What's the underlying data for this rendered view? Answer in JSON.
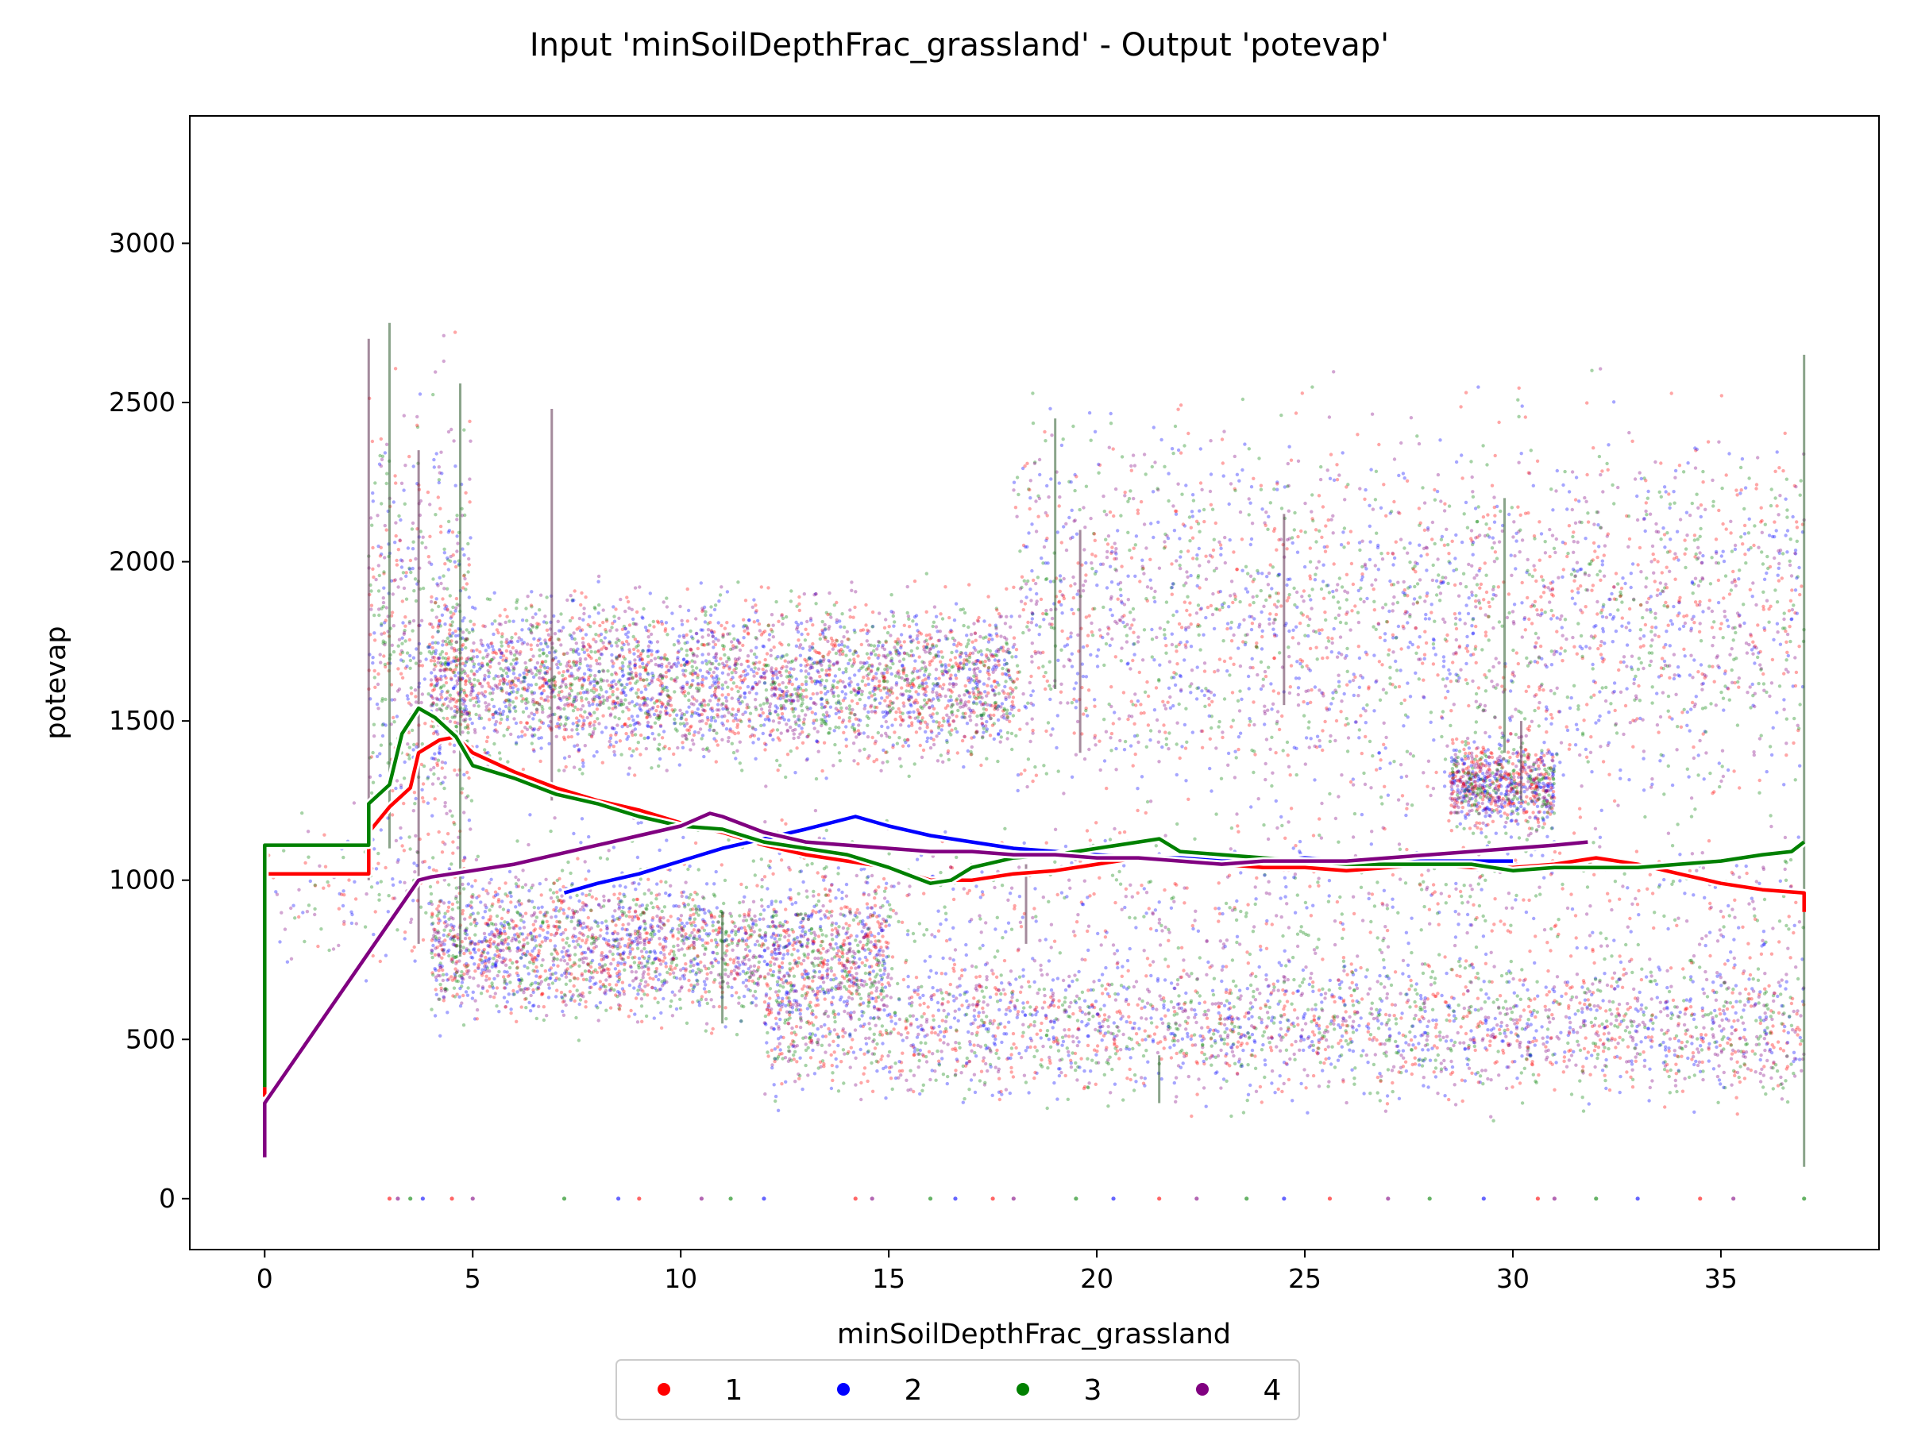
{
  "chart_data": {
    "type": "scatter",
    "title": "Input 'minSoilDepthFrac_grassland' - Output 'potevap'",
    "xlabel": "minSoilDepthFrac_grassland",
    "ylabel": "potevap",
    "xlim": [
      -1.8,
      38.8
    ],
    "ylim": [
      -160,
      3400
    ],
    "xticks": [
      0,
      5,
      10,
      15,
      20,
      25,
      30,
      35
    ],
    "yticks": [
      0,
      500,
      1000,
      1500,
      2000,
      2500,
      3000
    ],
    "grid": false,
    "legend_position": "bottom-center",
    "series": [
      {
        "name": "1",
        "color": "#ff0000",
        "line": [
          [
            0,
            320
          ],
          [
            0,
            1020
          ],
          [
            2.5,
            1020
          ],
          [
            2.5,
            1150
          ],
          [
            3.0,
            1230
          ],
          [
            3.5,
            1290
          ],
          [
            3.7,
            1400
          ],
          [
            4.2,
            1440
          ],
          [
            4.6,
            1450
          ],
          [
            5.0,
            1400
          ],
          [
            6.0,
            1340
          ],
          [
            7.0,
            1290
          ],
          [
            8.0,
            1250
          ],
          [
            9.0,
            1220
          ],
          [
            10.0,
            1180
          ],
          [
            11.0,
            1150
          ],
          [
            12.0,
            1110
          ],
          [
            13.0,
            1080
          ],
          [
            14.0,
            1060
          ],
          [
            15.0,
            1040
          ],
          [
            16.0,
            1000
          ],
          [
            17.0,
            1000
          ],
          [
            18.0,
            1020
          ],
          [
            19.0,
            1030
          ],
          [
            20.0,
            1050
          ],
          [
            21.0,
            1070
          ],
          [
            22.0,
            1070
          ],
          [
            23.0,
            1050
          ],
          [
            24.0,
            1040
          ],
          [
            25.0,
            1040
          ],
          [
            26.0,
            1030
          ],
          [
            27.0,
            1040
          ],
          [
            28.0,
            1050
          ],
          [
            29.0,
            1040
          ],
          [
            30.0,
            1040
          ],
          [
            31.0,
            1050
          ],
          [
            32.0,
            1070
          ],
          [
            33.0,
            1050
          ],
          [
            34.0,
            1020
          ],
          [
            35.0,
            990
          ],
          [
            36.0,
            970
          ],
          [
            37.0,
            960
          ],
          [
            37.0,
            900
          ]
        ]
      },
      {
        "name": "2",
        "color": "#0000ff",
        "line": [
          [
            7.2,
            960
          ],
          [
            8.0,
            990
          ],
          [
            9.0,
            1020
          ],
          [
            10.0,
            1060
          ],
          [
            11.0,
            1100
          ],
          [
            12.0,
            1130
          ],
          [
            13.0,
            1160
          ],
          [
            14.2,
            1200
          ],
          [
            15.0,
            1170
          ],
          [
            16.0,
            1140
          ],
          [
            17.0,
            1120
          ],
          [
            18.0,
            1100
          ],
          [
            19.0,
            1090
          ],
          [
            20.0,
            1080
          ],
          [
            21.0,
            1070
          ],
          [
            22.0,
            1070
          ],
          [
            23.0,
            1060
          ],
          [
            24.0,
            1060
          ],
          [
            25.0,
            1070
          ],
          [
            26.0,
            1060
          ],
          [
            27.0,
            1060
          ],
          [
            28.0,
            1060
          ],
          [
            29.0,
            1060
          ],
          [
            30.0,
            1060
          ]
        ]
      },
      {
        "name": "3",
        "color": "#008000",
        "line": [
          [
            0,
            350
          ],
          [
            0,
            1110
          ],
          [
            2.5,
            1110
          ],
          [
            2.5,
            1240
          ],
          [
            3.0,
            1300
          ],
          [
            3.3,
            1460
          ],
          [
            3.7,
            1540
          ],
          [
            4.1,
            1510
          ],
          [
            4.6,
            1450
          ],
          [
            5.0,
            1360
          ],
          [
            6.0,
            1320
          ],
          [
            7.0,
            1270
          ],
          [
            8.0,
            1240
          ],
          [
            9.0,
            1200
          ],
          [
            10.0,
            1170
          ],
          [
            11.0,
            1160
          ],
          [
            12.0,
            1120
          ],
          [
            13.0,
            1100
          ],
          [
            14.0,
            1080
          ],
          [
            15.0,
            1040
          ],
          [
            16.0,
            990
          ],
          [
            16.5,
            1000
          ],
          [
            17.0,
            1040
          ],
          [
            18.0,
            1070
          ],
          [
            19.0,
            1080
          ],
          [
            20.0,
            1100
          ],
          [
            21.0,
            1120
          ],
          [
            21.5,
            1130
          ],
          [
            22.0,
            1090
          ],
          [
            23.0,
            1080
          ],
          [
            24.0,
            1070
          ],
          [
            25.0,
            1060
          ],
          [
            26.0,
            1050
          ],
          [
            27.0,
            1050
          ],
          [
            28.0,
            1050
          ],
          [
            29.0,
            1050
          ],
          [
            30.0,
            1030
          ],
          [
            31.0,
            1040
          ],
          [
            32.0,
            1040
          ],
          [
            33.0,
            1040
          ],
          [
            34.0,
            1050
          ],
          [
            35.0,
            1060
          ],
          [
            36.0,
            1080
          ],
          [
            36.7,
            1090
          ],
          [
            37.0,
            1120
          ]
        ]
      },
      {
        "name": "4",
        "color": "#800080",
        "line": [
          [
            0,
            130
          ],
          [
            0,
            300
          ],
          [
            3.7,
            1000
          ],
          [
            4.0,
            1010
          ],
          [
            5.0,
            1030
          ],
          [
            6.0,
            1050
          ],
          [
            7.0,
            1080
          ],
          [
            8.0,
            1110
          ],
          [
            9.0,
            1140
          ],
          [
            10.0,
            1170
          ],
          [
            10.7,
            1210
          ],
          [
            11.0,
            1200
          ],
          [
            12.0,
            1150
          ],
          [
            13.0,
            1120
          ],
          [
            14.0,
            1110
          ],
          [
            15.0,
            1100
          ],
          [
            16.0,
            1090
          ],
          [
            17.0,
            1090
          ],
          [
            18.0,
            1080
          ],
          [
            19.0,
            1080
          ],
          [
            20.0,
            1070
          ],
          [
            21.0,
            1070
          ],
          [
            22.0,
            1060
          ],
          [
            23.0,
            1050
          ],
          [
            24.0,
            1060
          ],
          [
            25.0,
            1060
          ],
          [
            26.0,
            1060
          ],
          [
            27.0,
            1070
          ],
          [
            28.0,
            1080
          ],
          [
            29.0,
            1090
          ],
          [
            30.0,
            1100
          ],
          [
            31.0,
            1110
          ],
          [
            31.8,
            1120
          ]
        ]
      }
    ],
    "scatter_clusters": [
      {
        "x": [
          4,
          18
        ],
        "y": [
          1350,
          1900
        ],
        "n": 3500
      },
      {
        "x": [
          18,
          37
        ],
        "y": [
          1150,
          2500
        ],
        "n": 2800
      },
      {
        "x": [
          4,
          15
        ],
        "y": [
          550,
          1000
        ],
        "n": 2200
      },
      {
        "x": [
          12,
          37
        ],
        "y": [
          300,
          800
        ],
        "n": 3000
      },
      {
        "x": [
          28.5,
          31
        ],
        "y": [
          1150,
          1450
        ],
        "n": 800
      },
      {
        "x": [
          2.5,
          5
        ],
        "y": [
          900,
          2600
        ],
        "n": 600
      },
      {
        "x": [
          0,
          37
        ],
        "y": [
          700,
          1200
        ],
        "n": 1200
      }
    ],
    "vertical_streaks": [
      {
        "x": 2.5,
        "y": [
          1000,
          2700
        ]
      },
      {
        "x": 3.0,
        "y": [
          1100,
          2750
        ]
      },
      {
        "x": 3.7,
        "y": [
          800,
          2350
        ]
      },
      {
        "x": 4.7,
        "y": [
          760,
          2560
        ]
      },
      {
        "x": 6.9,
        "y": [
          1250,
          2480
        ]
      },
      {
        "x": 11.0,
        "y": [
          550,
          900
        ]
      },
      {
        "x": 18.3,
        "y": [
          800,
          1050
        ]
      },
      {
        "x": 19.0,
        "y": [
          1600,
          2450
        ]
      },
      {
        "x": 19.6,
        "y": [
          1400,
          2100
        ]
      },
      {
        "x": 21.5,
        "y": [
          300,
          450
        ]
      },
      {
        "x": 24.5,
        "y": [
          1550,
          2150
        ]
      },
      {
        "x": 29.8,
        "y": [
          1400,
          2200
        ]
      },
      {
        "x": 30.2,
        "y": [
          1250,
          1500
        ]
      },
      {
        "x": 37.0,
        "y": [
          100,
          2650
        ]
      }
    ],
    "zero_points_x": [
      3.0,
      3.2,
      3.5,
      3.8,
      4.5,
      5.0,
      7.2,
      8.5,
      9.0,
      10.5,
      11.2,
      12.0,
      14.2,
      14.6,
      16.0,
      16.6,
      17.5,
      18.0,
      19.5,
      20.4,
      21.5,
      22.4,
      23.6,
      24.5,
      25.6,
      27.0,
      28.0,
      29.3,
      30.6,
      31.0,
      32.0,
      33.0,
      34.5,
      35.3,
      37.0
    ],
    "legend_entries": [
      "1",
      "2",
      "3",
      "4"
    ]
  }
}
